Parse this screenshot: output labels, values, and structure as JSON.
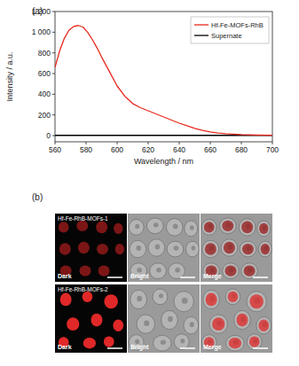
{
  "chart_data": {
    "type": "line",
    "title": "(a)",
    "xlabel": "Wavelength / nm",
    "ylabel": "Intensity / a.u.",
    "x": [
      560,
      563,
      566,
      569,
      572,
      575,
      578,
      581,
      584,
      587,
      590,
      595,
      600,
      605,
      610,
      615,
      620,
      625,
      630,
      635,
      640,
      645,
      650,
      655,
      660,
      665,
      670,
      680,
      690,
      700
    ],
    "series": [
      {
        "name": "Hf-Fe-MOFs-RhB",
        "color": "#e8281e",
        "values": [
          660,
          820,
          940,
          1020,
          1055,
          1065,
          1050,
          1000,
          930,
          850,
          760,
          620,
          480,
          380,
          310,
          270,
          240,
          210,
          180,
          150,
          120,
          95,
          70,
          50,
          35,
          25,
          18,
          10,
          6,
          4
        ]
      },
      {
        "name": "Supernate",
        "color": "#000000",
        "values": [
          2,
          2,
          2,
          2,
          2,
          2,
          2,
          2,
          2,
          2,
          2,
          2,
          2,
          2,
          2,
          2,
          2,
          2,
          2,
          2,
          2,
          2,
          2,
          2,
          2,
          2,
          2,
          2,
          2,
          2
        ]
      }
    ],
    "xlim": [
      560,
      700
    ],
    "ylim": [
      -60,
      1200
    ],
    "xticks": [
      560,
      580,
      600,
      620,
      640,
      660,
      680,
      700
    ],
    "yticks": [
      0,
      200,
      400,
      600,
      800,
      {
        "value": 1000,
        "label": "1 000"
      },
      {
        "value": 1200,
        "label": "1 200"
      }
    ],
    "legend": "upper right"
  },
  "figure_b": {
    "label": "(b)",
    "rows": [
      {
        "title": "Hf-Fe-RhB-MOFs-1"
      },
      {
        "title": "Hf-Fe-RhB-MOFs-2"
      }
    ],
    "columns": [
      "Dark",
      "Bright",
      "Merge"
    ]
  }
}
